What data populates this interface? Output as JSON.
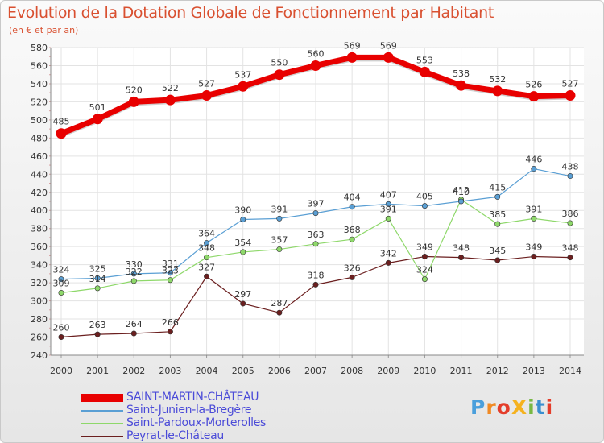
{
  "title": "Evolution de la Dotation Globale de Fonctionnement par Habitant",
  "subtitle": "(en € et par an)",
  "brand": "ProXiti",
  "chart_data": {
    "type": "line",
    "title": "Evolution de la Dotation Globale de Fonctionnement par Habitant",
    "ylabel": "(en € et par an)",
    "xlabel": "",
    "categories": [
      "2000",
      "2001",
      "2002",
      "2003",
      "2004",
      "2005",
      "2006",
      "2007",
      "2008",
      "2009",
      "2010",
      "2011",
      "2012",
      "2013",
      "2014"
    ],
    "ylim": [
      240,
      580
    ],
    "yticks": [
      "240",
      "260",
      "280",
      "300",
      "320",
      "340",
      "360",
      "380",
      "400",
      "420",
      "440",
      "460",
      "480",
      "500",
      "520",
      "540",
      "560",
      "580"
    ],
    "grid": true,
    "legend_position": "bottom-left",
    "series": [
      {
        "name": "SAINT-MARTIN-CHÂTEAU",
        "color": "#e80000",
        "values": [
          485,
          501,
          520,
          522,
          527,
          537,
          550,
          560,
          569,
          569,
          553,
          538,
          532,
          526,
          527
        ],
        "labels": [
          "485",
          "501",
          "520",
          "522",
          "527",
          "537",
          "550",
          "560",
          "569",
          "569",
          "553",
          "538",
          "532",
          "526",
          "527"
        ]
      },
      {
        "name": "Saint-Junien-la-Bregère",
        "color": "#5a9fd4",
        "values": [
          324,
          325,
          330,
          331,
          364,
          390,
          391,
          397,
          404,
          407,
          405,
          410,
          415,
          446,
          438
        ],
        "labels": [
          "324",
          "325",
          "330",
          "331",
          "364",
          "390",
          "391",
          "397",
          "404",
          "407",
          "405",
          "410",
          "415",
          "446",
          "438"
        ]
      },
      {
        "name": "Saint-Pardoux-Morterolles",
        "color": "#8ed86a",
        "values": [
          309,
          314,
          322,
          323,
          348,
          354,
          357,
          363,
          368,
          391,
          324,
          412,
          385,
          391,
          386
        ],
        "labels": [
          "309",
          "314",
          "322",
          "323",
          "348",
          "354",
          "357",
          "363",
          "368",
          "391",
          "324",
          "412",
          "385",
          "391",
          "386"
        ]
      },
      {
        "name": "Peyrat-le-Château",
        "color": "#6b1f1f",
        "values": [
          260,
          263,
          264,
          266,
          327,
          297,
          287,
          318,
          326,
          342,
          349,
          348,
          345,
          349,
          348
        ],
        "labels": [
          "260",
          "263",
          "264",
          "266",
          "327",
          "297",
          "287",
          "318",
          "326",
          "342",
          "349",
          "348",
          "345",
          "349",
          "348"
        ]
      }
    ]
  }
}
